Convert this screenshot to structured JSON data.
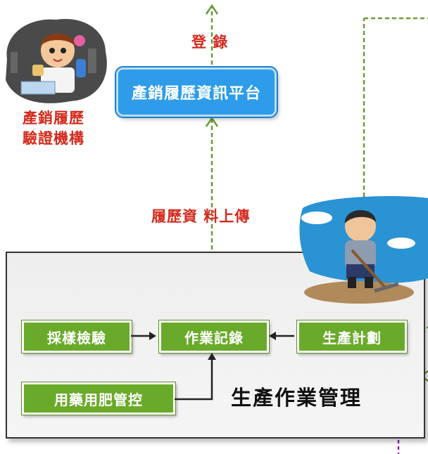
{
  "labels": {
    "register": "登 錄",
    "upload": "履歷資 料上傳",
    "institution_line1": "產銷履歷",
    "institution_line2": "驗證機構"
  },
  "platform": {
    "label": "產銷履歷資訊平台"
  },
  "panel": {
    "title": "生產作業管理",
    "boxes": {
      "sampling": "採樣檢驗",
      "record": "作業記錄",
      "plan": "生產計劃",
      "pesticide": "用藥用肥管控"
    }
  },
  "colors": {
    "accent_red": "#d42a1c",
    "platform_blue": "#2e9ce8",
    "box_green": "#6aaa2a",
    "dashed_arrow": "#6b9a3a"
  }
}
